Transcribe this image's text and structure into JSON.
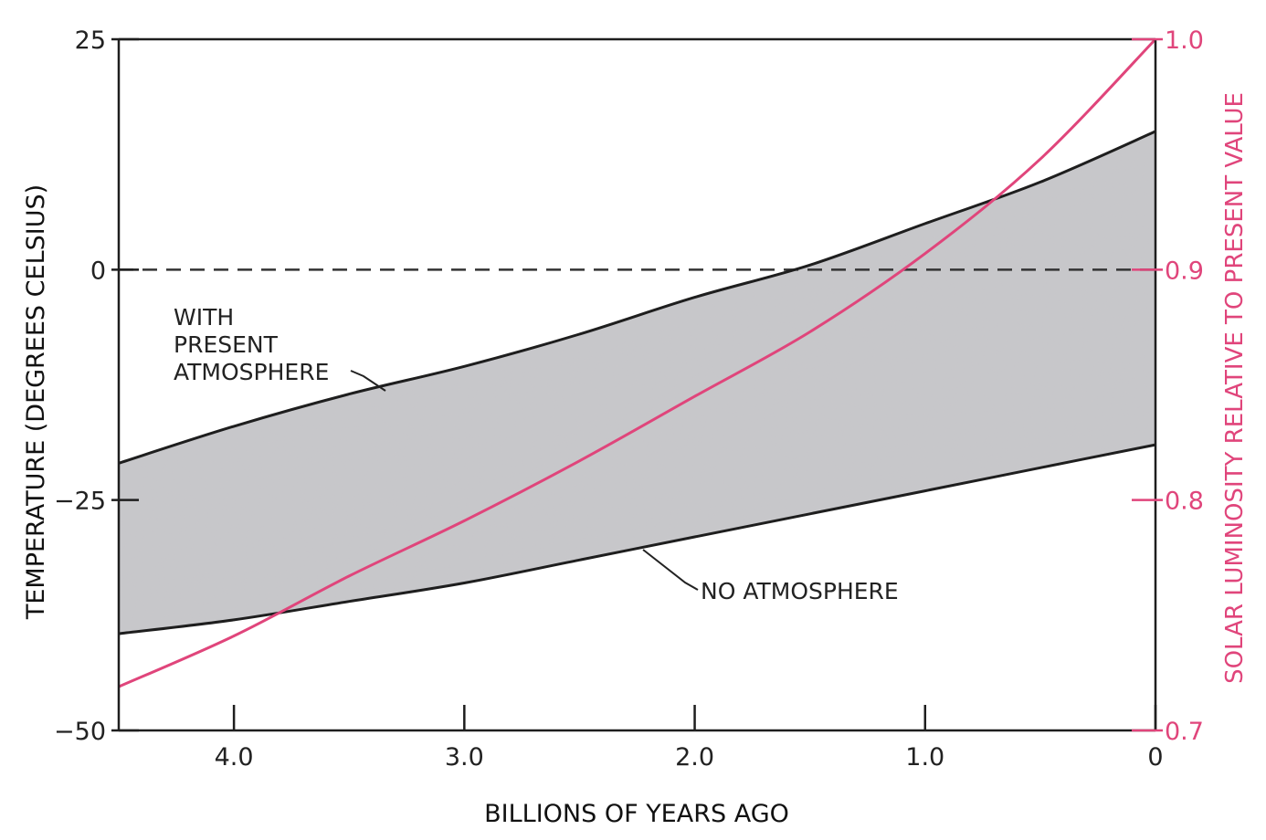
{
  "chart_data": {
    "type": "area",
    "xlabel": "BILLIONS OF YEARS AGO",
    "ylabel": "TEMPERATURE (DEGREES CELSIUS)",
    "y2label": "SOLAR LUMINOSITY RELATIVE TO PRESENT VALUE",
    "xlim": [
      4.5,
      0
    ],
    "ylim": [
      -50,
      25
    ],
    "y2lim": [
      0.7,
      1.0
    ],
    "x_ticks": [
      "4.0",
      "3.0",
      "2.0",
      "1.0",
      "0"
    ],
    "y_ticks": [
      "25",
      "0",
      "−25",
      "−50"
    ],
    "y2_ticks": [
      "1.0",
      "0.9",
      "0.8",
      "0.7"
    ],
    "reference_line": {
      "y": 0,
      "style": "dashed"
    },
    "series": [
      {
        "name": "WITH PRESENT ATMOSPHERE",
        "axis": "left",
        "x": [
          4.5,
          4.0,
          3.5,
          3.0,
          2.5,
          2.0,
          1.5,
          1.0,
          0.5,
          0
        ],
        "y": [
          -21,
          -17,
          -13.5,
          -10.5,
          -7,
          -3,
          0.5,
          5,
          9.5,
          15
        ]
      },
      {
        "name": "NO ATMOSPHERE",
        "axis": "left",
        "x": [
          4.5,
          4.0,
          3.5,
          3.0,
          2.5,
          2.0,
          1.5,
          1.0,
          0.5,
          0
        ],
        "y": [
          -39.5,
          -38,
          -36,
          -34,
          -31.5,
          -29,
          -26.5,
          -24,
          -21.5,
          -19
        ]
      },
      {
        "name": "",
        "axis": "right",
        "color": "#e0457b",
        "x": [
          4.5,
          4.0,
          3.5,
          3.0,
          2.5,
          2.0,
          1.5,
          1.0,
          0.5,
          0
        ],
        "y": [
          0.719,
          0.741,
          0.767,
          0.791,
          0.817,
          0.845,
          0.873,
          0.907,
          0.948,
          1.0
        ]
      }
    ],
    "annotations": [
      {
        "lines": [
          "WITH",
          "PRESENT",
          "ATMOSPHERE"
        ]
      },
      {
        "lines": [
          "NO  ATMOSPHERE"
        ]
      }
    ],
    "band_fill": "#c8c7cb",
    "luminosity_color": "#e0457b",
    "grid": false,
    "legend": "none"
  }
}
